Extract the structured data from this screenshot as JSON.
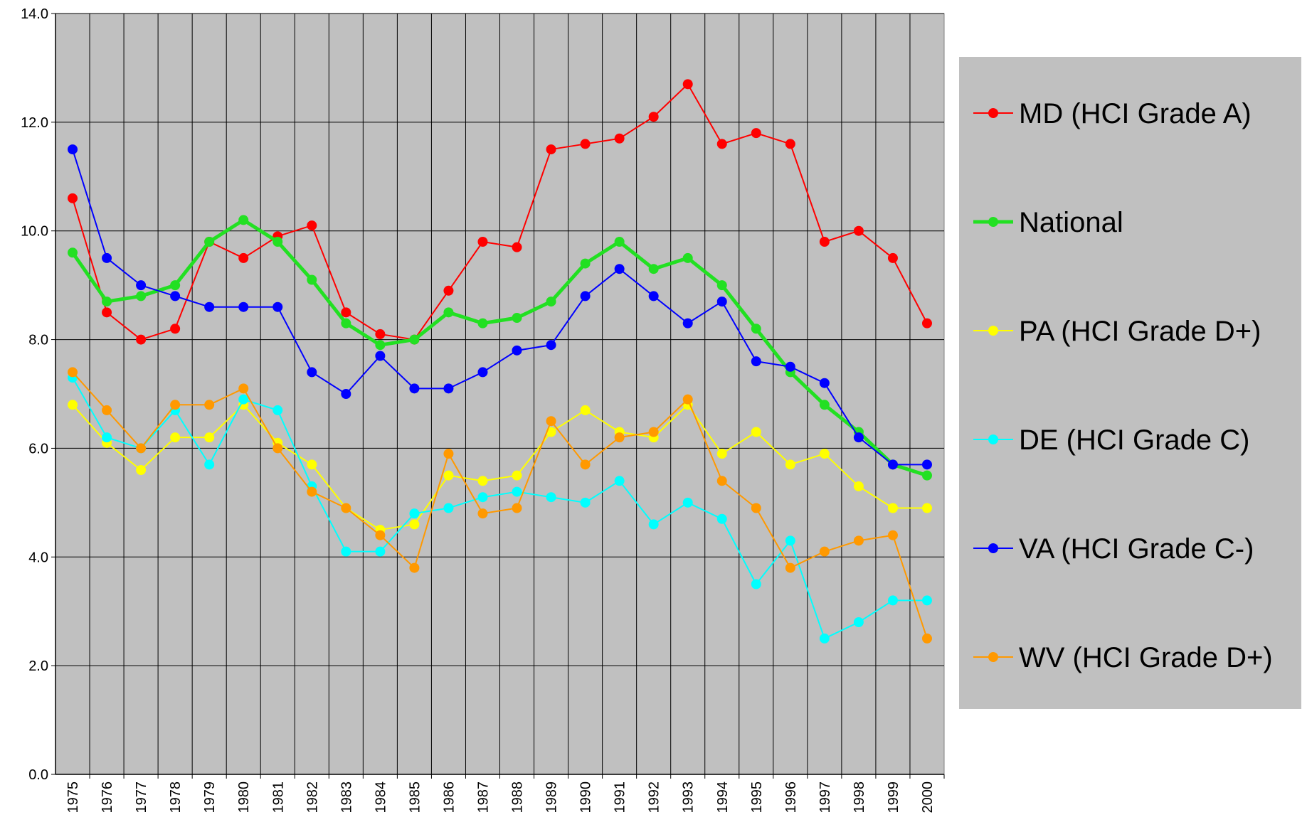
{
  "chart_data": {
    "type": "line",
    "categories": [
      "1975",
      "1976",
      "1977",
      "1978",
      "1979",
      "1980",
      "1981",
      "1982",
      "1983",
      "1984",
      "1985",
      "1986",
      "1987",
      "1988",
      "1989",
      "1990",
      "1991",
      "1992",
      "1993",
      "1994",
      "1995",
      "1996",
      "1997",
      "1998",
      "1999",
      "2000"
    ],
    "series": [
      {
        "name": "MD (HCI  Grade A)",
        "color": "#ff0000",
        "line_width": 2,
        "values": [
          10.6,
          8.5,
          8.0,
          8.2,
          9.8,
          9.5,
          9.9,
          10.1,
          8.5,
          8.1,
          8.0,
          8.9,
          9.8,
          9.7,
          11.5,
          11.6,
          11.7,
          12.1,
          12.7,
          11.6,
          11.8,
          11.6,
          9.8,
          10.0,
          9.5,
          8.3
        ]
      },
      {
        "name": "National",
        "color": "#22e022",
        "line_width": 5,
        "values": [
          9.6,
          8.7,
          8.8,
          9.0,
          9.8,
          10.2,
          9.8,
          9.1,
          8.3,
          7.9,
          8.0,
          8.5,
          8.3,
          8.4,
          8.7,
          9.4,
          9.8,
          9.3,
          9.5,
          9.0,
          8.2,
          7.4,
          6.8,
          6.3,
          5.7,
          5.5
        ]
      },
      {
        "name": "PA (HCI Grade D+)",
        "color": "#ffff00",
        "line_width": 2,
        "values": [
          6.8,
          6.1,
          5.6,
          6.2,
          6.2,
          6.8,
          6.1,
          5.7,
          4.9,
          4.5,
          4.6,
          5.5,
          5.4,
          5.5,
          6.3,
          6.7,
          6.3,
          6.2,
          6.8,
          5.9,
          6.3,
          5.7,
          5.9,
          5.3,
          4.9,
          4.9
        ]
      },
      {
        "name": "DE (HCI Grade C)",
        "color": "#00ffff",
        "line_width": 2,
        "values": [
          7.3,
          6.2,
          6.0,
          6.7,
          5.7,
          6.9,
          6.7,
          5.3,
          4.1,
          4.1,
          4.8,
          4.9,
          5.1,
          5.2,
          5.1,
          5.0,
          5.4,
          4.6,
          5.0,
          4.7,
          3.5,
          4.3,
          2.5,
          2.8,
          3.2,
          3.2
        ]
      },
      {
        "name": "VA (HCI Grade C-)",
        "color": "#0000ff",
        "line_width": 2,
        "values": [
          11.5,
          9.5,
          9.0,
          8.8,
          8.6,
          8.6,
          8.6,
          7.4,
          7.0,
          7.7,
          7.1,
          7.1,
          7.4,
          7.8,
          7.9,
          8.8,
          9.3,
          8.8,
          8.3,
          8.7,
          7.6,
          7.5,
          7.2,
          6.2,
          5.7,
          5.7
        ]
      },
      {
        "name": "WV (HCI Grade D+)",
        "color": "#ff9900",
        "line_width": 2,
        "values": [
          7.4,
          6.7,
          6.0,
          6.8,
          6.8,
          7.1,
          6.0,
          5.2,
          4.9,
          4.4,
          3.8,
          5.9,
          4.8,
          4.9,
          6.5,
          5.7,
          6.2,
          6.3,
          6.9,
          5.4,
          4.9,
          3.8,
          4.1,
          4.3,
          4.4,
          2.5
        ]
      }
    ],
    "ylim": [
      0,
      14
    ],
    "yticks": [
      {
        "value": 0,
        "label": "0.0"
      },
      {
        "value": 2,
        "label": "2.0"
      },
      {
        "value": 4,
        "label": "4.0"
      },
      {
        "value": 6,
        "label": "6.0"
      },
      {
        "value": 8,
        "label": "8.0"
      },
      {
        "value": 10,
        "label": "10.0"
      },
      {
        "value": 12,
        "label": "12.0"
      },
      {
        "value": 14,
        "label": "14.0"
      }
    ],
    "grid": true,
    "legend": "right"
  }
}
